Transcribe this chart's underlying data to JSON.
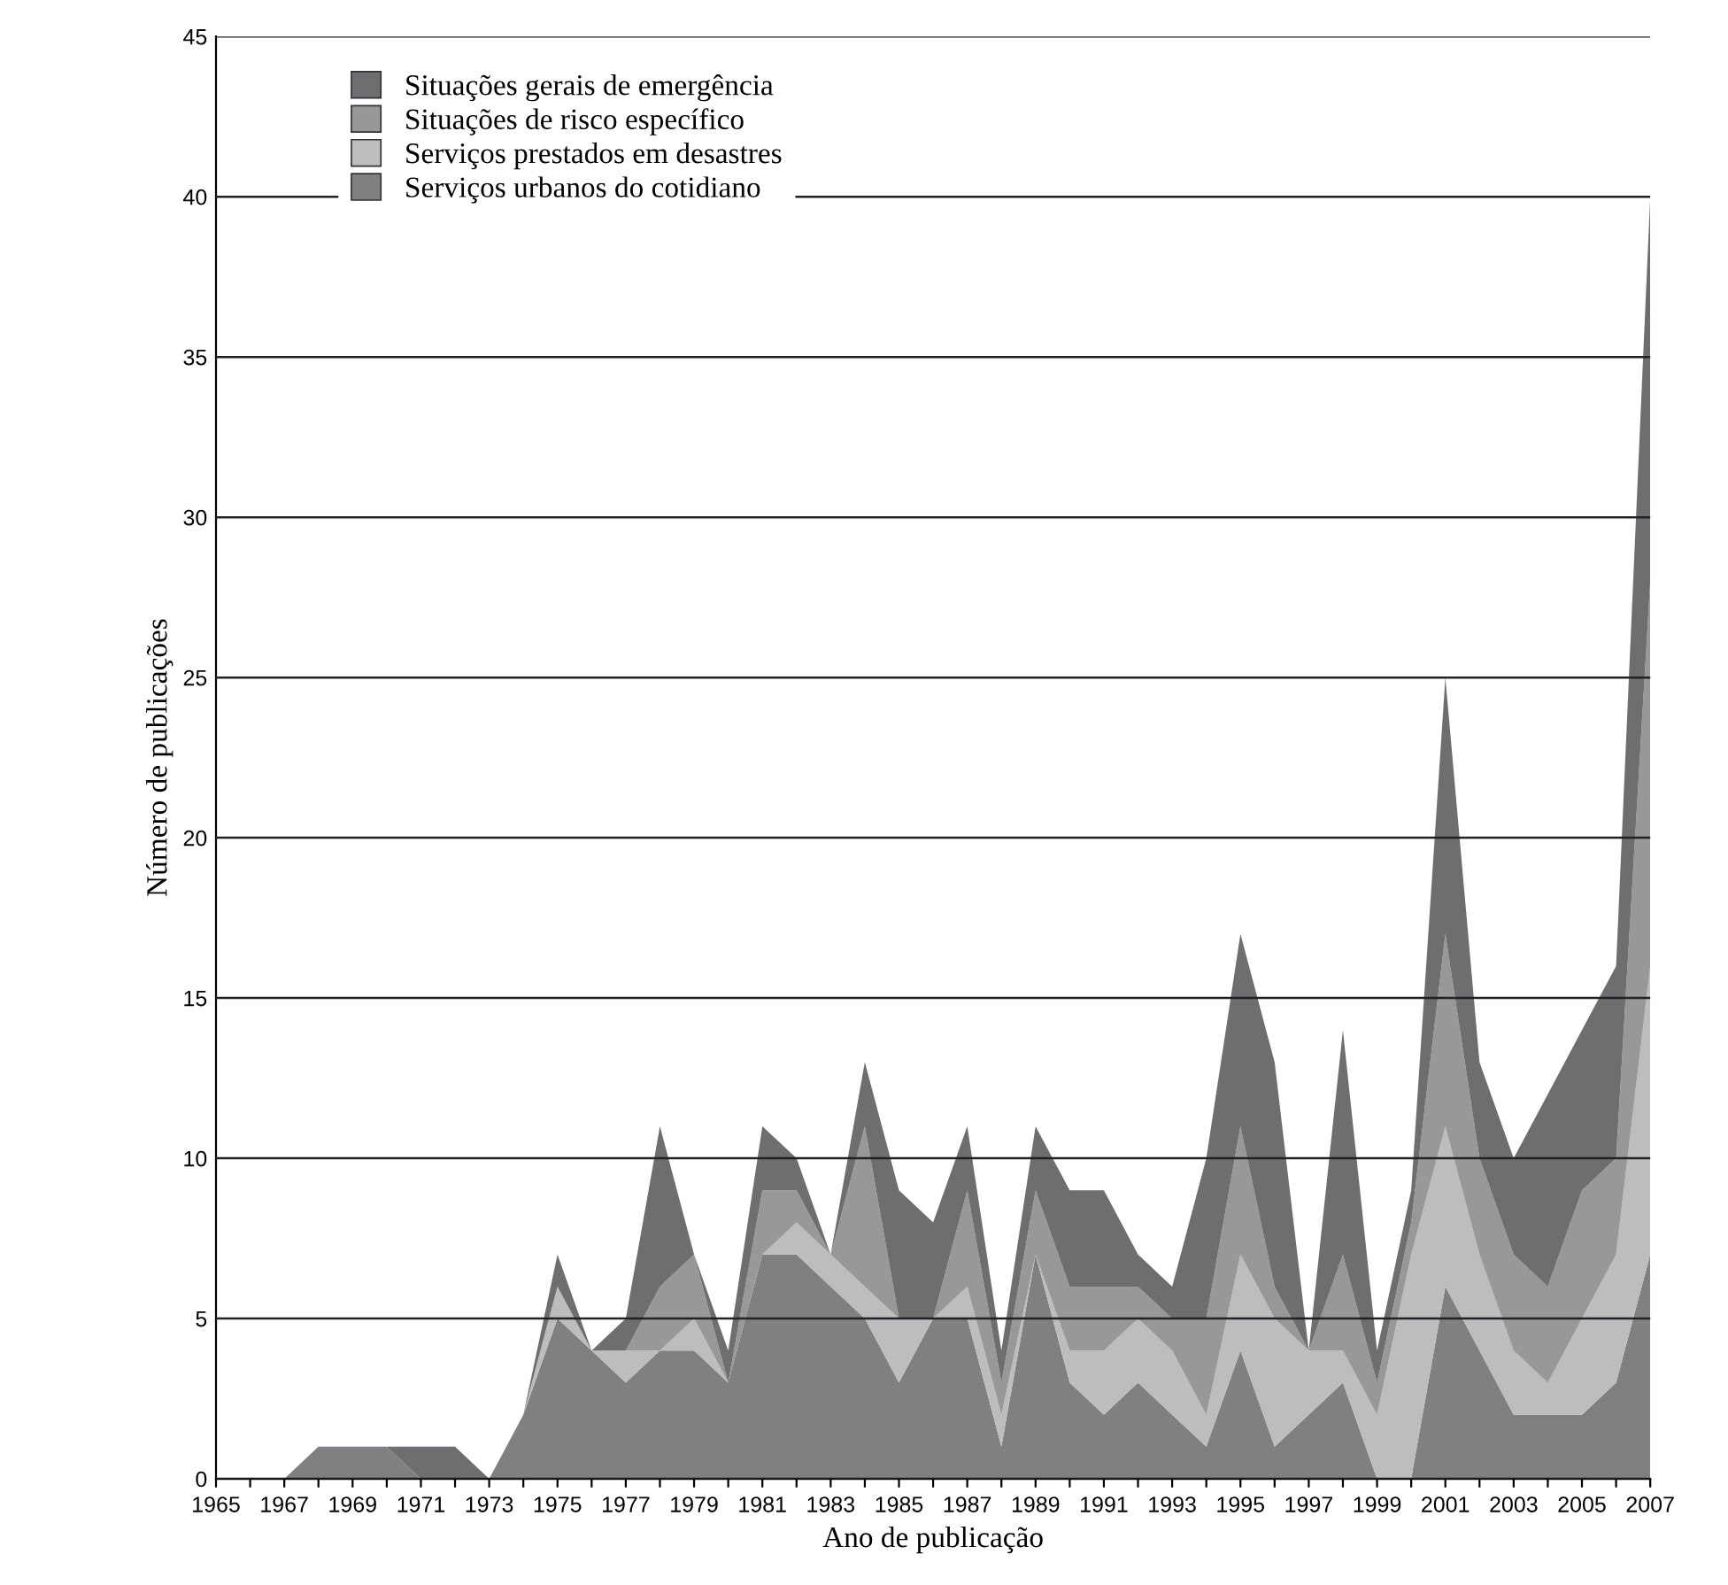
{
  "chart_data": {
    "type": "area",
    "stacked": true,
    "xlabel": "Ano de publicação",
    "ylabel": "Número de publicações",
    "x": [
      1965,
      1966,
      1967,
      1968,
      1969,
      1970,
      1971,
      1972,
      1973,
      1974,
      1975,
      1976,
      1977,
      1978,
      1979,
      1980,
      1981,
      1982,
      1983,
      1984,
      1985,
      1986,
      1987,
      1988,
      1989,
      1990,
      1991,
      1992,
      1993,
      1994,
      1995,
      1996,
      1997,
      1998,
      1999,
      2000,
      2001,
      2002,
      2003,
      2004,
      2005,
      2006,
      2007
    ],
    "series": [
      {
        "name": "Serviços urbanos do cotidiano",
        "color": "#808082",
        "values": [
          0,
          0,
          0,
          1,
          1,
          1,
          0,
          0,
          0,
          2,
          5,
          4,
          3,
          4,
          4,
          3,
          7,
          7,
          6,
          5,
          3,
          5,
          5,
          1,
          7,
          3,
          2,
          3,
          2,
          1,
          4,
          1,
          2,
          3,
          0,
          0,
          6,
          4,
          2,
          2,
          2,
          3,
          7
        ]
      },
      {
        "name": "Serviços prestados em desastres",
        "color": "#bdbdbf",
        "values": [
          0,
          0,
          0,
          0,
          0,
          0,
          0,
          0,
          0,
          0,
          1,
          0,
          1,
          0,
          1,
          0,
          0,
          1,
          1,
          1,
          2,
          0,
          1,
          1,
          0,
          1,
          2,
          2,
          2,
          1,
          3,
          4,
          2,
          1,
          2,
          7,
          5,
          3,
          2,
          1,
          3,
          4,
          9
        ]
      },
      {
        "name": "Situações de risco específico",
        "color": "#98989a",
        "values": [
          0,
          0,
          0,
          0,
          0,
          0,
          0,
          0,
          0,
          0,
          0,
          0,
          0,
          2,
          2,
          0,
          2,
          1,
          0,
          5,
          0,
          0,
          3,
          1,
          2,
          2,
          2,
          1,
          1,
          3,
          4,
          1,
          0,
          3,
          1,
          1,
          6,
          3,
          3,
          3,
          4,
          3,
          12
        ]
      },
      {
        "name": "Situações gerais de emergência",
        "color": "#6e6e70",
        "values": [
          0,
          0,
          0,
          0,
          0,
          0,
          1,
          1,
          0,
          0,
          1,
          0,
          1,
          5,
          0,
          1,
          2,
          1,
          0,
          2,
          4,
          3,
          2,
          1,
          2,
          3,
          3,
          1,
          1,
          5,
          6,
          7,
          0,
          7,
          1,
          1,
          8,
          3,
          3,
          6,
          5,
          6,
          12
        ]
      }
    ],
    "xlim": [
      1965,
      2007
    ],
    "xticks": [
      1965,
      {
        "value": 1966,
        "label": null
      },
      1967,
      {
        "value": 1968,
        "label": null
      },
      1969,
      {
        "value": 1970,
        "label": null
      },
      1971,
      {
        "value": 1972,
        "label": null
      },
      1973,
      {
        "value": 1974,
        "label": null
      },
      1975,
      {
        "value": 1976,
        "label": null
      },
      1977,
      {
        "value": 1978,
        "label": null
      },
      1979,
      {
        "value": 1980,
        "label": null
      },
      1981,
      {
        "value": 1982,
        "label": null
      },
      1983,
      {
        "value": 1984,
        "label": null
      },
      1985,
      {
        "value": 1986,
        "label": null
      },
      1987,
      {
        "value": 1988,
        "label": null
      },
      1989,
      {
        "value": 1990,
        "label": null
      },
      1991,
      {
        "value": 1992,
        "label": null
      },
      1993,
      {
        "value": 1994,
        "label": null
      },
      1995,
      {
        "value": 1996,
        "label": null
      },
      1997,
      {
        "value": 1998,
        "label": null
      },
      1999,
      {
        "value": 2000,
        "label": null
      },
      2001,
      {
        "value": 2002,
        "label": null
      },
      2003,
      {
        "value": 2004,
        "label": null
      },
      2005,
      {
        "value": 2006,
        "label": null
      },
      2007
    ],
    "ylim": [
      0,
      45
    ],
    "yticks": [
      0,
      5,
      10,
      15,
      20,
      25,
      30,
      35,
      40,
      45
    ],
    "grid": "y",
    "legend": "top left"
  }
}
